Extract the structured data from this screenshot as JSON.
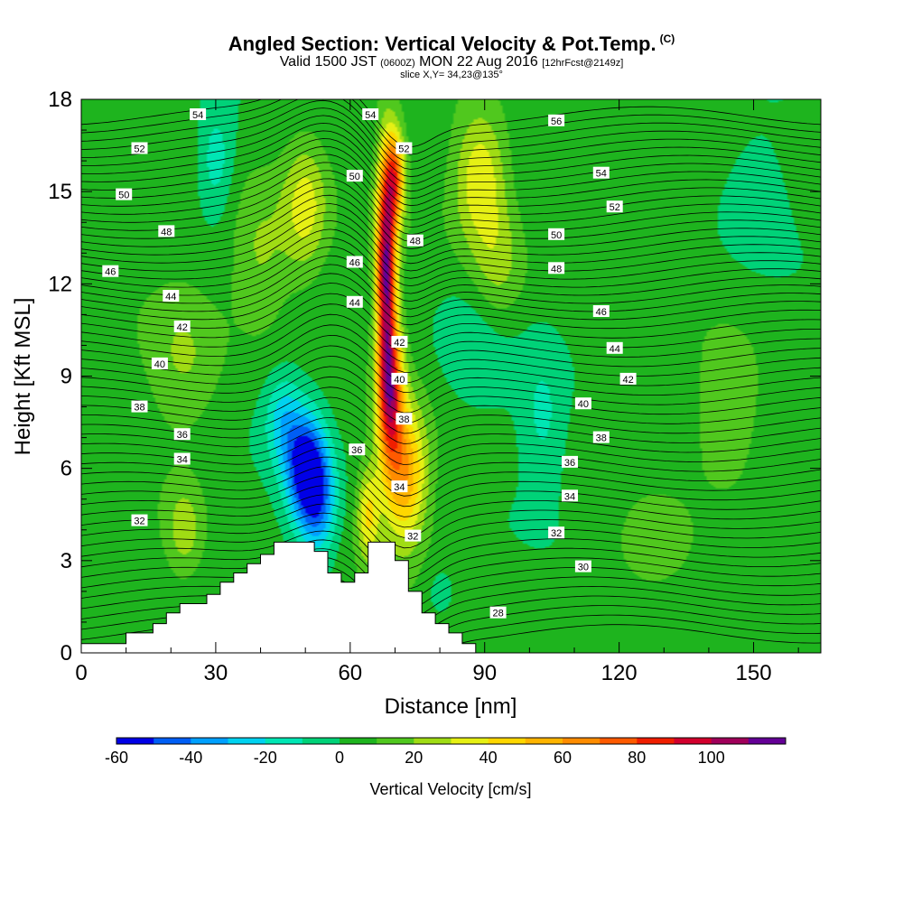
{
  "chart_data": {
    "type": "heatmap",
    "title": "Angled Section: Vertical Velocity & Pot.Temp.",
    "title_mark": "(C)",
    "subtitle_parts": {
      "a": "Valid 1500 JST",
      "b": "(0600Z)",
      "c": "MON 22 Aug 2016",
      "d": "[12hrFcst@2149z]"
    },
    "subtitle2": "slice X,Y= 34,23@135°",
    "xlabel": "Distance [nm]",
    "ylabel": "Height [Kft MSL]",
    "xlim": [
      0,
      165
    ],
    "ylim": [
      0,
      18
    ],
    "xticks": [
      0,
      30,
      60,
      90,
      120,
      150
    ],
    "yticks": [
      0,
      3,
      6,
      9,
      12,
      15,
      18
    ],
    "colorbar": {
      "label": "Vertical Velocity [cm/s]",
      "ticks": [
        -60,
        -40,
        -20,
        0,
        20,
        40,
        60,
        80,
        100
      ],
      "levels": [
        -60,
        -50,
        -40,
        -30,
        -20,
        -10,
        0,
        10,
        20,
        30,
        40,
        50,
        60,
        70,
        80,
        90,
        100,
        110
      ],
      "colors": [
        "#0000e6",
        "#005ef5",
        "#00a0ff",
        "#00d2f0",
        "#00e6b4",
        "#00d278",
        "#1eb41e",
        "#50c81e",
        "#a0dc14",
        "#e6f014",
        "#ffd700",
        "#ffb400",
        "#ff8c00",
        "#ff5a00",
        "#f01e00",
        "#d2002d",
        "#a0005a",
        "#640096"
      ]
    },
    "velocity_features": [
      {
        "x": 50,
        "y": 6.0,
        "value": -60,
        "sx": 4.5,
        "sy": 1.8
      },
      {
        "x": 53,
        "y": 4.8,
        "value": -35,
        "sx": 4,
        "sy": 1.8
      },
      {
        "x": 45,
        "y": 7.6,
        "value": -25,
        "sx": 4,
        "sy": 1.5
      },
      {
        "x": 68,
        "y": 12.5,
        "value": 105,
        "sx": 2.2,
        "sy": 3.5
      },
      {
        "x": 69,
        "y": 8.5,
        "value": 75,
        "sx": 2.8,
        "sy": 2.2
      },
      {
        "x": 70,
        "y": 15.5,
        "value": 60,
        "sx": 2.2,
        "sy": 1.5
      },
      {
        "x": 72,
        "y": 5.8,
        "value": 55,
        "sx": 5,
        "sy": 2.2
      },
      {
        "x": 64,
        "y": 4.5,
        "value": 35,
        "sx": 2.5,
        "sy": 1.5
      },
      {
        "x": 50,
        "y": 14.5,
        "value": 30,
        "sx": 5,
        "sy": 2.2
      },
      {
        "x": 40,
        "y": 13.0,
        "value": 20,
        "sx": 7,
        "sy": 2.5
      },
      {
        "x": 89,
        "y": 15.5,
        "value": 35,
        "sx": 6,
        "sy": 2.2
      },
      {
        "x": 93,
        "y": 12.5,
        "value": 20,
        "sx": 6,
        "sy": 2.2
      },
      {
        "x": 30,
        "y": 16.0,
        "value": -20,
        "sx": 4,
        "sy": 1.8
      },
      {
        "x": 88,
        "y": 10.0,
        "value": -12,
        "sx": 9,
        "sy": 2.2
      },
      {
        "x": 103,
        "y": 7.5,
        "value": -15,
        "sx": 5,
        "sy": 2.2
      },
      {
        "x": 145,
        "y": 8.0,
        "value": 15,
        "sx": 8,
        "sy": 2.5
      },
      {
        "x": 128,
        "y": 3.5,
        "value": 15,
        "sx": 8,
        "sy": 1.2
      },
      {
        "x": 23,
        "y": 9.5,
        "value": 15,
        "sx": 8,
        "sy": 2.5
      },
      {
        "x": 23,
        "y": 4.0,
        "value": 20,
        "sx": 4,
        "sy": 1.5
      },
      {
        "x": 80,
        "y": 2.0,
        "value": -10,
        "sx": 4,
        "sy": 1.0
      },
      {
        "x": 150,
        "y": 15.0,
        "value": -8,
        "sx": 8,
        "sy": 2.0
      }
    ],
    "terrain_kft": [
      [
        0,
        0.3
      ],
      [
        10,
        0.3
      ],
      [
        10,
        0.65
      ],
      [
        16,
        0.65
      ],
      [
        16,
        0.95
      ],
      [
        19,
        0.95
      ],
      [
        19,
        1.3
      ],
      [
        22,
        1.3
      ],
      [
        22,
        1.6
      ],
      [
        28,
        1.6
      ],
      [
        28,
        1.9
      ],
      [
        31,
        1.9
      ],
      [
        31,
        2.3
      ],
      [
        34,
        2.3
      ],
      [
        34,
        2.6
      ],
      [
        37,
        2.6
      ],
      [
        37,
        2.9
      ],
      [
        40,
        2.9
      ],
      [
        40,
        3.2
      ],
      [
        43,
        3.2
      ],
      [
        43,
        3.6
      ],
      [
        52,
        3.6
      ],
      [
        52,
        3.3
      ],
      [
        55,
        3.3
      ],
      [
        55,
        2.6
      ],
      [
        58,
        2.6
      ],
      [
        58,
        2.3
      ],
      [
        61,
        2.3
      ],
      [
        61,
        2.6
      ],
      [
        64,
        2.6
      ],
      [
        64,
        3.6
      ],
      [
        70,
        3.6
      ],
      [
        70,
        3.0
      ],
      [
        73,
        3.0
      ],
      [
        73,
        2.0
      ],
      [
        76,
        2.0
      ],
      [
        76,
        1.3
      ],
      [
        79,
        1.3
      ],
      [
        79,
        0.95
      ],
      [
        82,
        0.95
      ],
      [
        82,
        0.65
      ],
      [
        85,
        0.65
      ],
      [
        85,
        0.3
      ],
      [
        88,
        0.3
      ],
      [
        88,
        0
      ]
    ],
    "theta_labels": [
      {
        "text": "54",
        "x": 26,
        "y": 17.5
      },
      {
        "text": "54",
        "x": 64.5,
        "y": 17.5
      },
      {
        "text": "56",
        "x": 106,
        "y": 17.3
      },
      {
        "text": "52",
        "x": 13,
        "y": 16.4
      },
      {
        "text": "52",
        "x": 72,
        "y": 16.4
      },
      {
        "text": "54",
        "x": 116,
        "y": 15.6
      },
      {
        "text": "50",
        "x": 9.5,
        "y": 14.9
      },
      {
        "text": "50",
        "x": 61,
        "y": 15.5
      },
      {
        "text": "52",
        "x": 119,
        "y": 14.5
      },
      {
        "text": "48",
        "x": 19,
        "y": 13.7
      },
      {
        "text": "48",
        "x": 74.5,
        "y": 13.4
      },
      {
        "text": "50",
        "x": 106,
        "y": 13.6
      },
      {
        "text": "46",
        "x": 6.5,
        "y": 12.4
      },
      {
        "text": "46",
        "x": 61,
        "y": 12.7
      },
      {
        "text": "48",
        "x": 106,
        "y": 12.5
      },
      {
        "text": "44",
        "x": 20,
        "y": 11.6
      },
      {
        "text": "44",
        "x": 61,
        "y": 11.4
      },
      {
        "text": "46",
        "x": 116,
        "y": 11.1
      },
      {
        "text": "42",
        "x": 22.5,
        "y": 10.6
      },
      {
        "text": "42",
        "x": 71,
        "y": 10.1
      },
      {
        "text": "44",
        "x": 119,
        "y": 9.9
      },
      {
        "text": "40",
        "x": 17.5,
        "y": 9.4
      },
      {
        "text": "40",
        "x": 71,
        "y": 8.9
      },
      {
        "text": "42",
        "x": 122,
        "y": 8.9
      },
      {
        "text": "38",
        "x": 13,
        "y": 8.0
      },
      {
        "text": "38",
        "x": 72,
        "y": 7.6
      },
      {
        "text": "40",
        "x": 112,
        "y": 8.1
      },
      {
        "text": "36",
        "x": 22.5,
        "y": 7.1
      },
      {
        "text": "36",
        "x": 61.5,
        "y": 6.6
      },
      {
        "text": "38",
        "x": 116,
        "y": 7.0
      },
      {
        "text": "34",
        "x": 22.5,
        "y": 6.3
      },
      {
        "text": "34",
        "x": 71,
        "y": 5.4
      },
      {
        "text": "36",
        "x": 109,
        "y": 6.2
      },
      {
        "text": "32",
        "x": 13,
        "y": 4.3
      },
      {
        "text": "32",
        "x": 74,
        "y": 3.8
      },
      {
        "text": "34",
        "x": 109,
        "y": 5.1
      },
      {
        "text": "32",
        "x": 106,
        "y": 3.9
      },
      {
        "text": "30",
        "x": 112,
        "y": 2.8
      },
      {
        "text": "28",
        "x": 93,
        "y": 1.3
      }
    ]
  }
}
